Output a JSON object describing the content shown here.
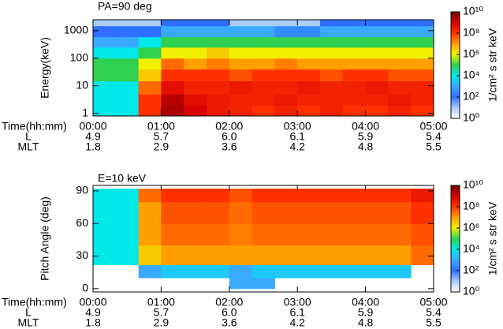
{
  "chart_data": [
    {
      "type": "heatmap",
      "title": "PA=90 deg",
      "ylabel": "Energy(keV)",
      "xlabel": "Time(hh:mm)",
      "yscale": "log",
      "x": [
        0,
        20,
        40,
        60,
        80,
        100,
        120,
        140,
        160,
        180,
        200,
        220,
        240,
        260,
        280,
        300
      ],
      "y": [
        0.8,
        2,
        5,
        15,
        40,
        100,
        250,
        600,
        1500,
        2500
      ],
      "z": [
        [
          10000.0,
          10000.0,
          100000000.0,
          3000000000.0,
          1000000000.0,
          300000000.0,
          200000000.0,
          100000000.0,
          200000000.0,
          100000000.0,
          200000000.0,
          100000000.0,
          100000000.0,
          200000000.0,
          100000000.0
        ],
        [
          10000.0,
          10000.0,
          100000000.0,
          2000000000.0,
          500000000.0,
          300000000.0,
          200000000.0,
          200000000.0,
          300000000.0,
          200000000.0,
          200000000.0,
          200000000.0,
          200000000.0,
          300000000.0,
          200000000.0
        ],
        [
          10000.0,
          10000.0,
          30000000.0,
          500000000.0,
          200000000.0,
          200000000.0,
          300000000.0,
          200000000.0,
          200000000.0,
          300000000.0,
          200000000.0,
          200000000.0,
          300000000.0,
          200000000.0,
          200000000.0
        ],
        [
          100000.0,
          100000.0,
          3000000.0,
          100000000.0,
          100000000.0,
          100000000.0,
          50000000.0,
          100000000.0,
          100000000.0,
          100000000.0,
          50000000.0,
          100000000.0,
          100000000.0,
          50000000.0,
          50000000.0
        ],
        [
          100000.0,
          100000.0,
          1000000.0,
          30000000.0,
          10000000.0,
          20000000.0,
          10000000.0,
          10000000.0,
          20000000.0,
          10000000.0,
          10000000.0,
          10000000.0,
          10000000.0,
          10000000.0,
          10000000.0
        ],
        [
          10000.0,
          10000.0,
          100000.0,
          1000000.0,
          1000000.0,
          3000000.0,
          1000000.0,
          1000000.0,
          1000000.0,
          1000000.0,
          1000000.0,
          1000000.0,
          1000000.0,
          1000000.0,
          1000000.0
        ],
        [
          1000.0,
          1000.0,
          10000.0,
          100000.0,
          100000.0,
          100000.0,
          100000.0,
          100000.0,
          100000.0,
          100000.0,
          100000.0,
          100000.0,
          100000.0,
          100000.0,
          100000.0
        ],
        [
          100.0,
          100.0,
          100.0,
          1000.0,
          1000.0,
          1000.0,
          1000.0,
          1000.0,
          300.0,
          300.0,
          1000.0,
          1000.0,
          1000.0,
          1000.0,
          1000.0
        ],
        [
          10.0,
          10.0,
          10.0,
          100.0,
          100.0,
          100.0,
          10.0,
          10.0,
          10.0,
          10.0,
          100.0,
          100.0,
          100.0,
          100.0,
          100.0
        ]
      ],
      "xlim": [
        0,
        300
      ],
      "xticks": [
        {
          "value": 0,
          "label": "00:00"
        },
        {
          "value": 60,
          "label": "01:00"
        },
        {
          "value": 120,
          "label": "02:00"
        },
        {
          "value": 180,
          "label": "03:00"
        },
        {
          "value": 240,
          "label": "04:00"
        },
        {
          "value": 300,
          "label": "05:00"
        }
      ],
      "extra_rows": [
        {
          "name": "L",
          "labels": [
            "4.9",
            "5.7",
            "6.0",
            "6.1",
            "5.9",
            "5.4"
          ]
        },
        {
          "name": "MLT",
          "labels": [
            "1.8",
            "2.9",
            "3.6",
            "4.2",
            "4.8",
            "5.5"
          ]
        }
      ],
      "ylim": [
        0.8,
        2500
      ],
      "yticks": [
        1,
        10,
        100,
        1000
      ],
      "colorbar": {
        "label": "1/cm² s str keV",
        "scale": "log",
        "lim": [
          1,
          10000000000.0
        ],
        "ticks": [
          {
            "value": 1,
            "label": "10⁰"
          },
          {
            "value": 100,
            "label": "10²"
          },
          {
            "value": 10000.0,
            "label": "10⁴"
          },
          {
            "value": 1000000.0,
            "label": "10⁶"
          },
          {
            "value": 100000000.0,
            "label": "10⁸"
          },
          {
            "value": 10000000000.0,
            "label": "10¹⁰"
          }
        ],
        "colors": [
          "#ffffff",
          "#aaccff",
          "#2f6fff",
          "#3aaaff",
          "#00e8e8",
          "#30d050",
          "#f0f000",
          "#ffa000",
          "#ff3000",
          "#d80000",
          "#700000"
        ]
      }
    },
    {
      "type": "heatmap",
      "title": "E=10 keV",
      "ylabel": "Pitch Angle (deg)",
      "xlabel": "Time(hh:mm)",
      "yscale": "linear",
      "x": [
        0,
        20,
        40,
        60,
        80,
        100,
        120,
        140,
        160,
        180,
        200,
        220,
        240,
        260,
        280,
        300
      ],
      "y": [
        0,
        10,
        22,
        40,
        60,
        80,
        92
      ],
      "z": [
        [
          null,
          null,
          null,
          null,
          null,
          null,
          1000.0,
          1000.0,
          null,
          null,
          null,
          null,
          null,
          null,
          null
        ],
        [
          null,
          null,
          1000.0,
          3000.0,
          3000.0,
          3000.0,
          1000.0,
          3000.0,
          3000.0,
          3000.0,
          3000.0,
          3000.0,
          3000.0,
          3000.0,
          null
        ],
        [
          10000.0,
          10000.0,
          3000000.0,
          10000000.0,
          10000000.0,
          10000000.0,
          10000000.0,
          10000000.0,
          10000000.0,
          10000000.0,
          10000000.0,
          10000000.0,
          10000000.0,
          10000000.0,
          30000000.0
        ],
        [
          10000.0,
          10000.0,
          10000000.0,
          30000000.0,
          30000000.0,
          30000000.0,
          20000000.0,
          30000000.0,
          30000000.0,
          30000000.0,
          30000000.0,
          30000000.0,
          30000000.0,
          30000000.0,
          50000000.0
        ],
        [
          10000.0,
          10000.0,
          10000000.0,
          50000000.0,
          50000000.0,
          50000000.0,
          30000000.0,
          50000000.0,
          50000000.0,
          50000000.0,
          50000000.0,
          50000000.0,
          50000000.0,
          50000000.0,
          100000000.0
        ],
        [
          10000.0,
          10000.0,
          30000000.0,
          100000000.0,
          100000000.0,
          100000000.0,
          50000000.0,
          100000000.0,
          100000000.0,
          100000000.0,
          100000000.0,
          100000000.0,
          100000000.0,
          100000000.0,
          300000000.0
        ]
      ],
      "xlim": [
        0,
        300
      ],
      "xticks": [
        {
          "value": 0,
          "label": "00:00"
        },
        {
          "value": 60,
          "label": "01:00"
        },
        {
          "value": 120,
          "label": "02:00"
        },
        {
          "value": 180,
          "label": "03:00"
        },
        {
          "value": 240,
          "label": "04:00"
        },
        {
          "value": 300,
          "label": "05:00"
        }
      ],
      "extra_rows": [
        {
          "name": "L",
          "labels": [
            "4.9",
            "5.7",
            "6.0",
            "6.1",
            "5.9",
            "5.4"
          ]
        },
        {
          "name": "MLT",
          "labels": [
            "1.8",
            "2.9",
            "3.6",
            "4.2",
            "4.8",
            "5.5"
          ]
        }
      ],
      "ylim": [
        -3,
        95
      ],
      "yticks": [
        0,
        30,
        60,
        90
      ],
      "colorbar": {
        "label": "1/cm² s str keV",
        "scale": "log",
        "lim": [
          1,
          10000000000.0
        ],
        "ticks": [
          {
            "value": 1,
            "label": "10⁰"
          },
          {
            "value": 100,
            "label": "10²"
          },
          {
            "value": 10000.0,
            "label": "10⁴"
          },
          {
            "value": 1000000.0,
            "label": "10⁶"
          },
          {
            "value": 100000000.0,
            "label": "10⁸"
          },
          {
            "value": 10000000000.0,
            "label": "10¹⁰"
          }
        ],
        "colors": [
          "#ffffff",
          "#aaccff",
          "#2f6fff",
          "#3aaaff",
          "#00e8e8",
          "#30d050",
          "#f0f000",
          "#ffa000",
          "#ff3000",
          "#d80000",
          "#700000"
        ]
      }
    }
  ]
}
